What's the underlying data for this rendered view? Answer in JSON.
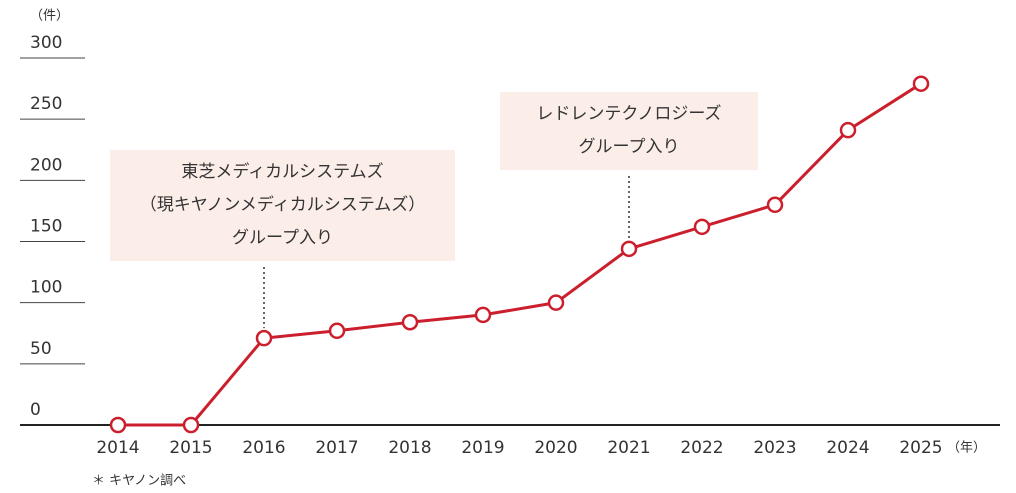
{
  "chart_data": {
    "type": "line",
    "y_unit": "（件）",
    "x_unit": "（年）",
    "note": "＊ キヤノン調べ",
    "categories": [
      "2014",
      "2015",
      "2016",
      "2017",
      "2018",
      "2019",
      "2020",
      "2021",
      "2022",
      "2023",
      "2024",
      "2025"
    ],
    "values": [
      0,
      0,
      71,
      77,
      84,
      90,
      100,
      144,
      162,
      180,
      241,
      279
    ],
    "color": "#cc1f2d",
    "ylim": [
      0,
      300
    ],
    "yticks": [
      0,
      50,
      100,
      150,
      200,
      250,
      300
    ],
    "annotations": [
      {
        "category": "2016",
        "lines": [
          "東芝メディカルシステムズ",
          "（現キヤノンメディカルシステムズ）",
          "グループ入り"
        ]
      },
      {
        "category": "2021",
        "lines": [
          "レドレンテクノロジーズ",
          "グループ入り"
        ]
      }
    ]
  }
}
